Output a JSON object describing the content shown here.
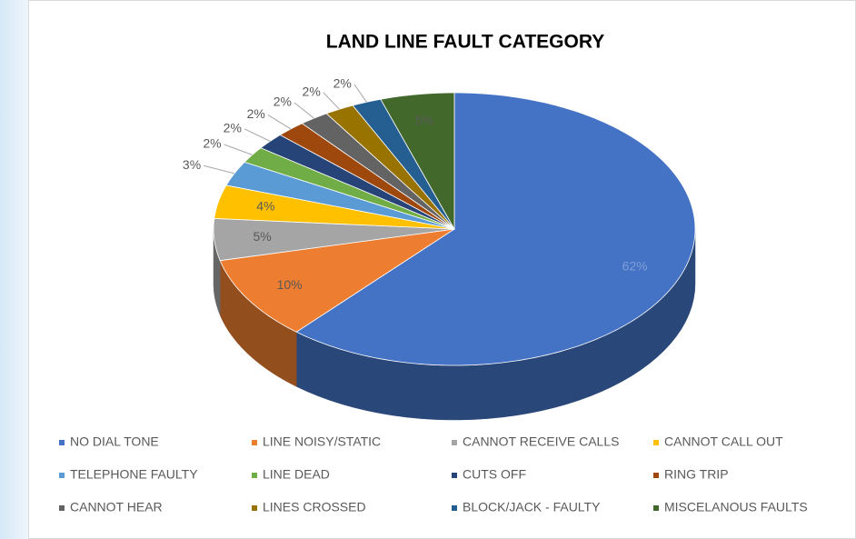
{
  "chart_data": {
    "type": "pie",
    "title": "LAND LINE FAULT CATEGORY",
    "categories": [
      "NO DIAL TONE",
      "LINE NOISY/STATIC",
      "CANNOT RECEIVE CALLS",
      "CANNOT CALL OUT",
      "TELEPHONE FAULTY",
      "LINE DEAD",
      "CUTS OFF",
      "RING TRIP",
      "CANNOT HEAR",
      "LINES CROSSED",
      "BLOCK/JACK - FAULTY",
      "MISCELANOUS FAULTS"
    ],
    "values": [
      62,
      10,
      5,
      4,
      3,
      2,
      2,
      2,
      2,
      2,
      2,
      5
    ],
    "value_labels": [
      "62%",
      "10%",
      "5%",
      "4%",
      "3%",
      "2%",
      "2%",
      "2%",
      "2%",
      "2%",
      "2%",
      "5%"
    ],
    "colors": [
      "#4472c4",
      "#ed7d31",
      "#a5a5a5",
      "#ffc000",
      "#5b9bd5",
      "#70ad47",
      "#264478",
      "#9e480e",
      "#636363",
      "#997300",
      "#255e91",
      "#43682b"
    ],
    "legend": "bottom"
  }
}
